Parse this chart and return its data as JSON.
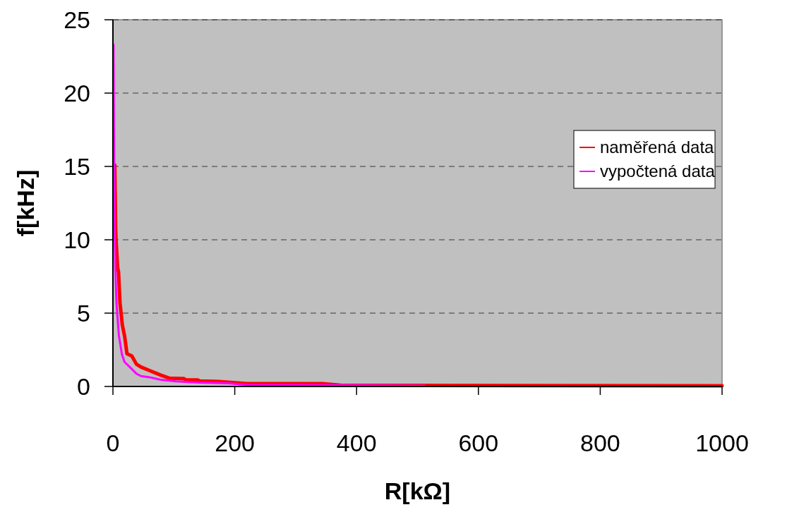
{
  "chart_data": {
    "type": "line",
    "xlabel": "R[kΩ]",
    "ylabel": "f[kHz]",
    "xlim": [
      0,
      1000
    ],
    "xticks": [
      0,
      200,
      400,
      600,
      800,
      1000
    ],
    "ylim": [
      0,
      25
    ],
    "yticks": [
      0,
      5,
      10,
      15,
      20,
      25
    ],
    "grid": "y",
    "legend": "right",
    "marker": "none",
    "line_style": "solid",
    "series": [
      {
        "name": "naměřená data",
        "color": "#ff0000",
        "x": [
          3,
          4.4,
          5.1,
          7.7,
          9.2,
          11.6,
          15.4,
          19.3,
          23,
          31,
          38.6,
          46,
          61,
          77,
          93,
          116,
          120,
          139,
          143,
          174,
          197,
          220,
          344,
          374,
          500,
          1000
        ],
        "values": [
          15.1,
          10.8,
          9.95,
          8.1,
          7.8,
          5.7,
          4.2,
          3.4,
          2.24,
          2.08,
          1.52,
          1.33,
          1.07,
          0.8,
          0.56,
          0.54,
          0.45,
          0.45,
          0.37,
          0.34,
          0.27,
          0.19,
          0.19,
          0.08,
          0.07,
          0.05
        ]
      },
      {
        "name": "vypočtená data",
        "color": "#ff00ff",
        "x": [
          1,
          2,
          3,
          3.9,
          5.8,
          9.7,
          14.7,
          19,
          27,
          38.6,
          46,
          60,
          77,
          104,
          143,
          189,
          220,
          512
        ],
        "values": [
          23.3,
          15,
          10.5,
          8.1,
          5.7,
          3.5,
          2.2,
          1.67,
          1.35,
          0.87,
          0.71,
          0.63,
          0.47,
          0.35,
          0.27,
          0.22,
          0.11,
          0.05
        ]
      }
    ]
  }
}
